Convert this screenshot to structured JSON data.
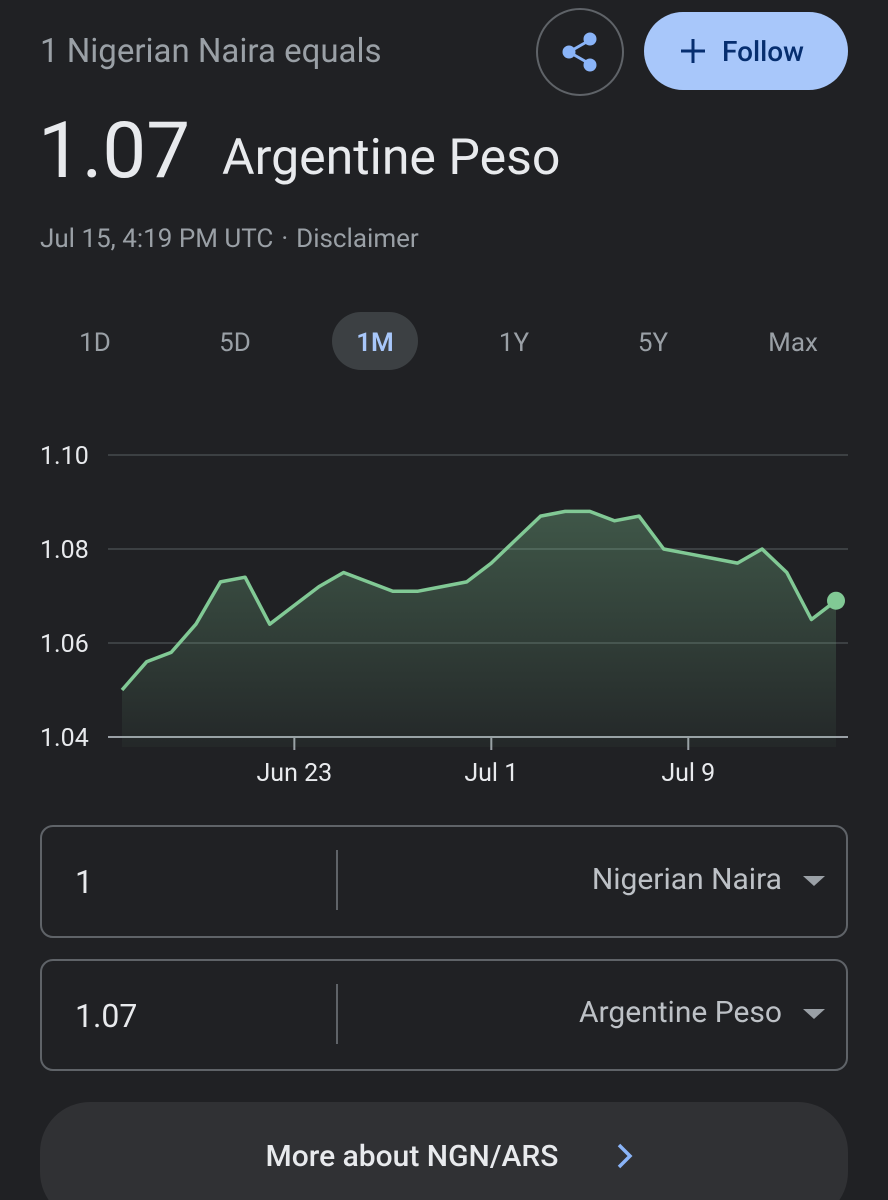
{
  "header": {
    "subtitle": "1 Nigerian Naira equals",
    "amount": "1.07",
    "currency": "Argentine Peso",
    "timestamp": "Jul 15, 4:19 PM UTC",
    "separator": "·",
    "disclaimer": "Disclaimer",
    "follow": "Follow"
  },
  "ranges": [
    "1D",
    "5D",
    "1M",
    "1Y",
    "5Y",
    "Max"
  ],
  "selected_range": "1M",
  "chart_data": {
    "type": "line",
    "x": [
      "Jun 16",
      "Jun 17",
      "Jun 18",
      "Jun 19",
      "Jun 20",
      "Jun 21",
      "Jun 22",
      "Jun 23",
      "Jun 24",
      "Jun 25",
      "Jun 26",
      "Jun 27",
      "Jun 28",
      "Jun 29",
      "Jun 30",
      "Jul 1",
      "Jul 2",
      "Jul 3",
      "Jul 4",
      "Jul 5",
      "Jul 6",
      "Jul 7",
      "Jul 8",
      "Jul 9",
      "Jul 10",
      "Jul 11",
      "Jul 12",
      "Jul 13",
      "Jul 14",
      "Jul 15"
    ],
    "values": [
      1.05,
      1.056,
      1.058,
      1.064,
      1.073,
      1.074,
      1.064,
      1.068,
      1.072,
      1.075,
      1.073,
      1.071,
      1.071,
      1.072,
      1.073,
      1.077,
      1.082,
      1.087,
      1.088,
      1.088,
      1.086,
      1.087,
      1.08,
      1.079,
      1.078,
      1.077,
      1.08,
      1.075,
      1.065,
      1.069
    ],
    "color": "#81c995",
    "ylim": [
      1.04,
      1.1
    ],
    "yticks": [
      1.04,
      1.06,
      1.08,
      {
        "value": 1.1,
        "label": "1.10"
      }
    ],
    "xticks": [
      "Jun 23",
      "Jul 1",
      "Jul 9"
    ],
    "grid": true
  },
  "converter": {
    "from": {
      "amount": "1",
      "currency": "Nigerian Naira"
    },
    "to": {
      "amount": "1.07",
      "currency": "Argentine Peso"
    }
  },
  "more_link": "More about NGN/ARS"
}
